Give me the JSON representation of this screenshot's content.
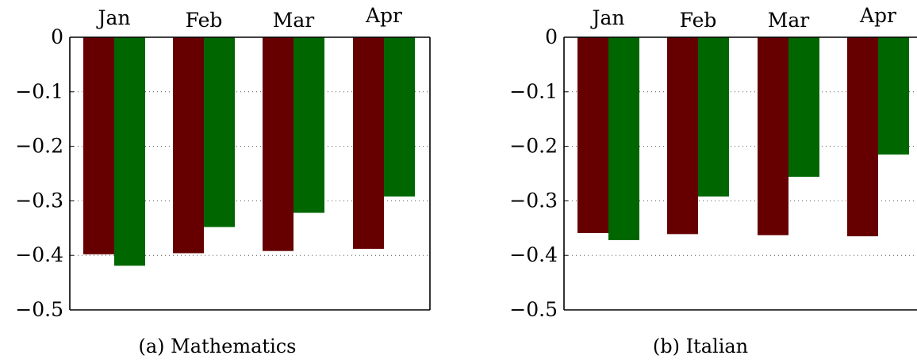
{
  "chart_data": [
    {
      "type": "bar",
      "caption": "(a) Mathematics",
      "categories": [
        "Jan",
        "Feb",
        "Mar",
        "Apr"
      ],
      "ylim": [
        -0.5,
        0
      ],
      "yticks": [
        0,
        -0.1,
        -0.2,
        -0.3,
        -0.4,
        -0.5
      ],
      "ytick_labels": [
        "0",
        "−0.1",
        "−0.2",
        "−0.3",
        "−0.4",
        "−0.5"
      ],
      "grid": "dotted horizontal",
      "x_axis_position": "top",
      "series": [
        {
          "values": [
            -0.398,
            -0.396,
            -0.392,
            -0.388
          ]
        },
        {
          "values": [
            -0.419,
            -0.348,
            -0.322,
            -0.292
          ]
        }
      ]
    },
    {
      "type": "bar",
      "caption": "(b) Italian",
      "categories": [
        "Jan",
        "Feb",
        "Mar",
        "Apr"
      ],
      "ylim": [
        -0.5,
        0
      ],
      "yticks": [
        0,
        -0.1,
        -0.2,
        -0.3,
        -0.4,
        -0.5
      ],
      "ytick_labels": [
        "0",
        "−0.1",
        "−0.2",
        "−0.3",
        "−0.4",
        "−0.5"
      ],
      "grid": "dotted horizontal",
      "x_axis_position": "top",
      "series": [
        {
          "values": [
            -0.359,
            -0.361,
            -0.363,
            -0.365
          ]
        },
        {
          "values": [
            -0.372,
            -0.292,
            -0.256,
            -0.215
          ]
        }
      ]
    }
  ],
  "colors": {
    "series_1": "#660000",
    "series_2": "#006600"
  }
}
